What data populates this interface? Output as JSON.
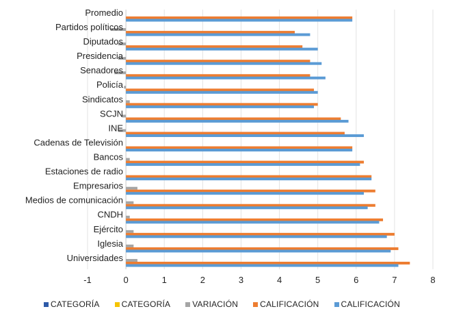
{
  "chart_data": {
    "type": "bar",
    "orientation": "horizontal",
    "categories": [
      "Universidades",
      "Iglesia",
      "Ejército",
      "CNDH",
      "Medios de comunicación",
      "Empresarios",
      "Estaciones de radio",
      "Bancos",
      "Cadenas de Televisión",
      "INE",
      "SCJN",
      "Sindicatos",
      "Policía",
      "Senadores",
      "Presidencia",
      "Diputados",
      "Partidos políticos",
      "Promedio"
    ],
    "xlim": [
      -1,
      8
    ],
    "xticks": [
      -1,
      0,
      1,
      2,
      3,
      4,
      5,
      6,
      7,
      8
    ],
    "grid": "vertical",
    "legend_position": "bottom",
    "series": [
      {
        "name": "CATEGORÍA",
        "color": "#2e5aa8",
        "values": [
          0,
          0,
          0,
          0,
          0,
          0,
          0,
          0,
          0,
          0,
          0,
          0,
          0,
          0,
          0,
          0,
          0,
          0
        ]
      },
      {
        "name": "CATEGORÍA",
        "color": "#f5c400",
        "values": [
          0,
          0,
          0,
          0,
          0,
          0,
          0,
          0,
          0,
          0,
          0,
          0,
          0,
          0,
          0,
          0,
          0,
          0
        ]
      },
      {
        "name": "VARIACIÓN",
        "color": "#a5a5a5",
        "values": [
          0.3,
          0.2,
          0.2,
          0.1,
          0.2,
          0.3,
          0.0,
          0.1,
          0.0,
          -0.2,
          -0.1,
          0.1,
          -0.05,
          -0.3,
          -0.2,
          -0.2,
          -0.4,
          0.0
        ]
      },
      {
        "name": "CALIFICACIÓN",
        "color": "#ed7d31",
        "values": [
          7.4,
          7.1,
          7.0,
          6.7,
          6.5,
          6.5,
          6.4,
          6.2,
          5.9,
          5.7,
          5.6,
          5.0,
          4.9,
          4.8,
          4.8,
          4.6,
          4.4,
          5.9
        ]
      },
      {
        "name": "CALIFICACIÓN",
        "color": "#5b9bd5",
        "values": [
          7.1,
          6.9,
          6.8,
          6.6,
          6.3,
          6.2,
          6.4,
          6.1,
          5.9,
          6.2,
          5.8,
          4.9,
          5.0,
          5.2,
          5.1,
          5.0,
          4.8,
          5.9
        ]
      }
    ]
  }
}
